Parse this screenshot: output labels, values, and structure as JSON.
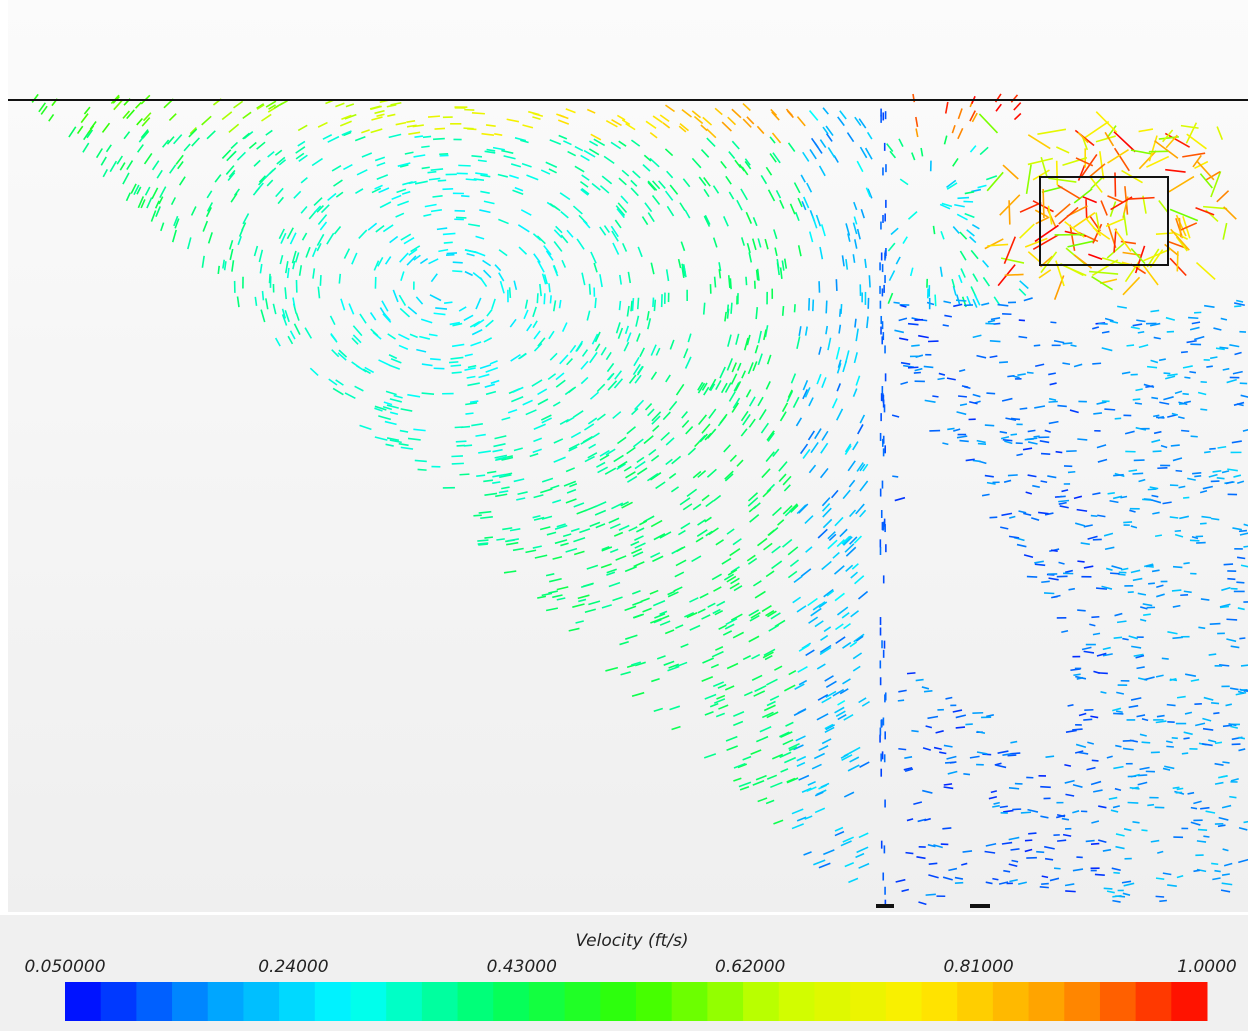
{
  "colorbar": {
    "title": "Velocity (ft/s)",
    "lim": [
      0.05,
      1.0
    ],
    "ticks": [
      {
        "value": 0.05,
        "label": "0.050000"
      },
      {
        "value": 0.24,
        "label": "0.24000"
      },
      {
        "value": 0.43,
        "label": "0.43000"
      },
      {
        "value": 0.62,
        "label": "0.62000"
      },
      {
        "value": 0.81,
        "label": "0.81000"
      },
      {
        "value": 1.0,
        "label": "1.0000"
      }
    ],
    "bands": 32,
    "colormap": [
      "#0000ff",
      "#0099ff",
      "#00ffff",
      "#00ff66",
      "#33ff00",
      "#ccff00",
      "#ffee00",
      "#ff9900",
      "#ff0000"
    ]
  }
}
